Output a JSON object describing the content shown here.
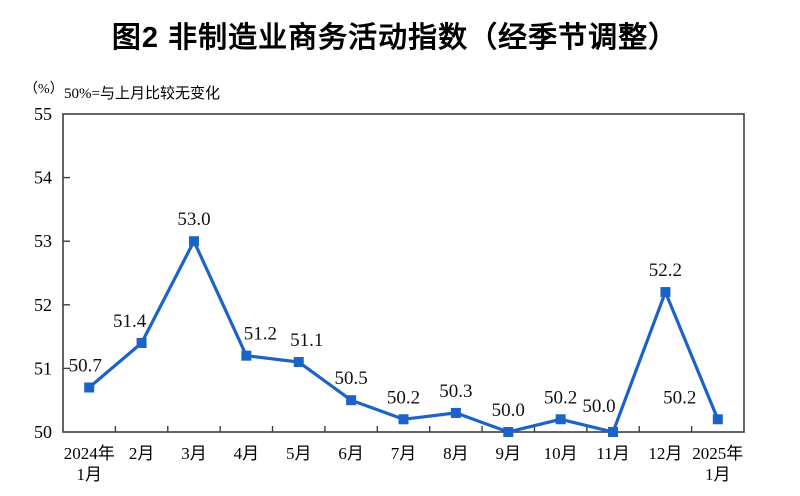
{
  "chart_data": {
    "type": "line",
    "title": "图2 非制造业商务活动指数（经季节调整）",
    "unit_label": "（%）",
    "subtitle": "50%=与上月比较无变化",
    "categories": [
      [
        "2024年",
        "1月"
      ],
      [
        "2月"
      ],
      [
        "3月"
      ],
      [
        "4月"
      ],
      [
        "5月"
      ],
      [
        "6月"
      ],
      [
        "7月"
      ],
      [
        "8月"
      ],
      [
        "9月"
      ],
      [
        "10月"
      ],
      [
        "11月"
      ],
      [
        "12月"
      ],
      [
        "2025年",
        "1月"
      ]
    ],
    "values": [
      50.7,
      51.4,
      53.0,
      51.2,
      51.1,
      50.5,
      50.2,
      50.3,
      50.0,
      50.2,
      50.0,
      52.2,
      50.2
    ],
    "point_labels": [
      "50.7",
      "51.4",
      "53.0",
      "51.2",
      "51.1",
      "50.5",
      "50.2",
      "50.3",
      "50.0",
      "50.2",
      "50.0",
      "52.2",
      "50.2"
    ],
    "label_offsets": {
      "0": {
        "dx": -4,
        "dy": 0
      },
      "1": {
        "dx": -12,
        "dy": 0
      },
      "3": {
        "dx": 14,
        "dy": 0
      },
      "4": {
        "dx": 8,
        "dy": 0
      },
      "10": {
        "dx": -14,
        "dy": -4
      },
      "12": {
        "dx": -38,
        "dy": 0
      }
    },
    "ylim": [
      50,
      55
    ],
    "ytick_step": 1,
    "grid": false,
    "legend": "none",
    "marker": "square",
    "colors": {
      "line": "#1B63C6",
      "marker": "#1B63C6",
      "axis": "#3f3f3f",
      "text": "#000000",
      "data_label": "#111111"
    }
  }
}
